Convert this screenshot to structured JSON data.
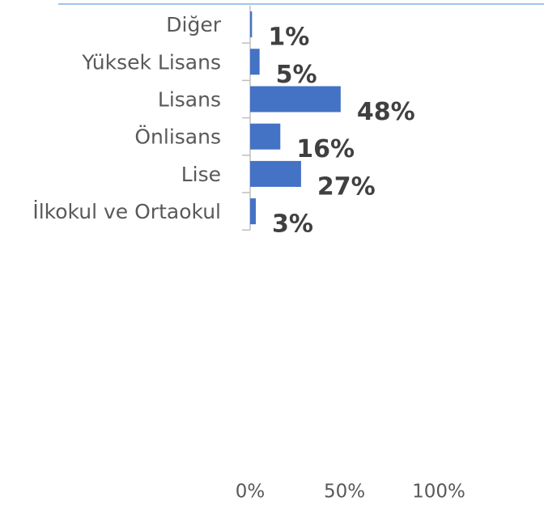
{
  "chart_data": {
    "type": "bar",
    "orientation": "horizontal",
    "categories": [
      "Diğer",
      "Yüksek Lisans",
      "Lisans",
      "Önlisans",
      "Lise",
      "İlkokul ve Ortaokul"
    ],
    "values": [
      1,
      5,
      48,
      16,
      27,
      3
    ],
    "value_labels": [
      "1%",
      "5%",
      "48%",
      "16%",
      "27%",
      "3%"
    ],
    "color": "#4472c4",
    "xlim": [
      0,
      100
    ],
    "xticks": [
      {
        "value": 0,
        "label": "0%"
      },
      {
        "value": 50,
        "label": "50%"
      },
      {
        "value": 100,
        "label": "100%"
      }
    ]
  }
}
